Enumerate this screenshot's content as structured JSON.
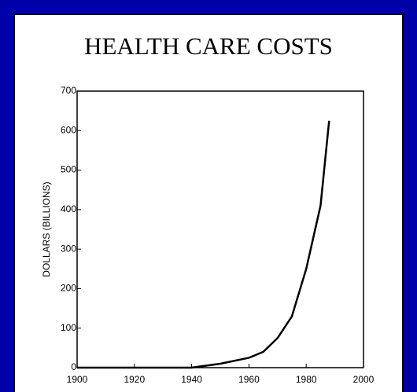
{
  "chart_data": {
    "type": "line",
    "title": "HEALTH CARE COSTS",
    "ylabel": "DOLLARS (BILLIONS)",
    "x": [
      1900,
      1940,
      1950,
      1960,
      1965,
      1970,
      1975,
      1980,
      1985,
      1988
    ],
    "values": [
      0,
      0,
      10,
      25,
      40,
      75,
      130,
      250,
      410,
      625
    ],
    "color": "#000000",
    "xlim": [
      1900,
      2000
    ],
    "xticks": [
      1900,
      1920,
      1940,
      1960,
      1980,
      2000
    ],
    "ylim": [
      0,
      700
    ],
    "yticks": [
      0,
      100,
      200,
      300,
      400,
      500,
      600,
      700
    ]
  }
}
